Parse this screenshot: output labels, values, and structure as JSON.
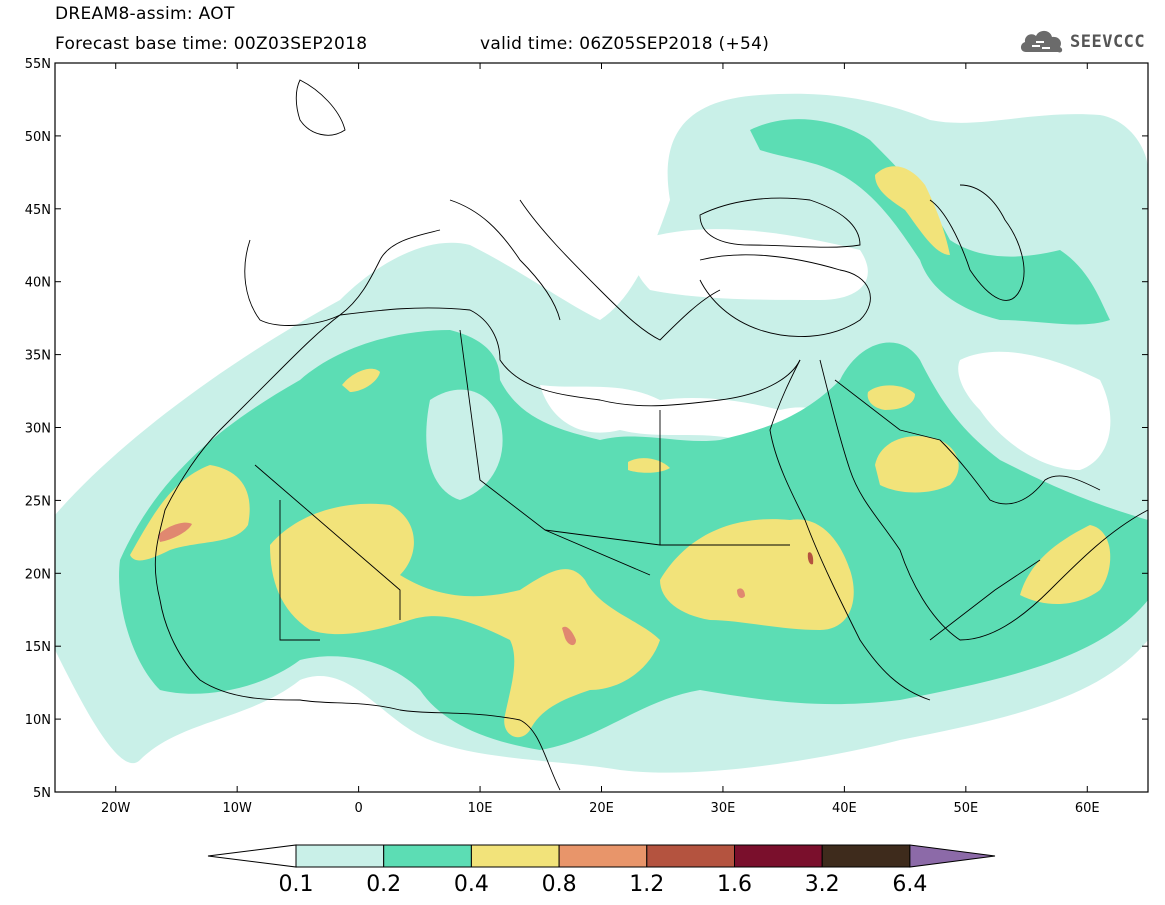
{
  "title": {
    "line1": "DREAM8-assim: AOT",
    "base_time": "Forecast base time: 00Z03SEP2018",
    "valid_time": "valid time: 06Z05SEP2018 (+54)"
  },
  "logo": {
    "text": "SEEVCCC",
    "icon": "cloud-icon"
  },
  "axes": {
    "lat_labels": [
      "55N",
      "50N",
      "45N",
      "40N",
      "35N",
      "30N",
      "25N",
      "20N",
      "15N",
      "10N",
      "5N"
    ],
    "lon_labels": [
      "20W",
      "10W",
      "0",
      "10E",
      "20E",
      "30E",
      "40E",
      "50E",
      "60E"
    ],
    "lat_range": [
      5,
      55
    ],
    "lon_range": [
      -25,
      65
    ]
  },
  "colorbar": {
    "labels": [
      "0.1",
      "0.2",
      "0.4",
      "0.8",
      "1.2",
      "1.6",
      "3.2",
      "6.4"
    ],
    "colors": [
      "#ffffff",
      "#c9f0e8",
      "#5cddb4",
      "#f2e37a",
      "#e8956a",
      "#b4533f",
      "#7a0f2c",
      "#3e2b1c",
      "#8c6aa8"
    ]
  },
  "fields": {
    "level_colors": {
      "0.1": "#c9f0e8",
      "0.2": "#5cddb4",
      "0.4": "#f2e37a",
      "0.8": "#e08870"
    }
  }
}
